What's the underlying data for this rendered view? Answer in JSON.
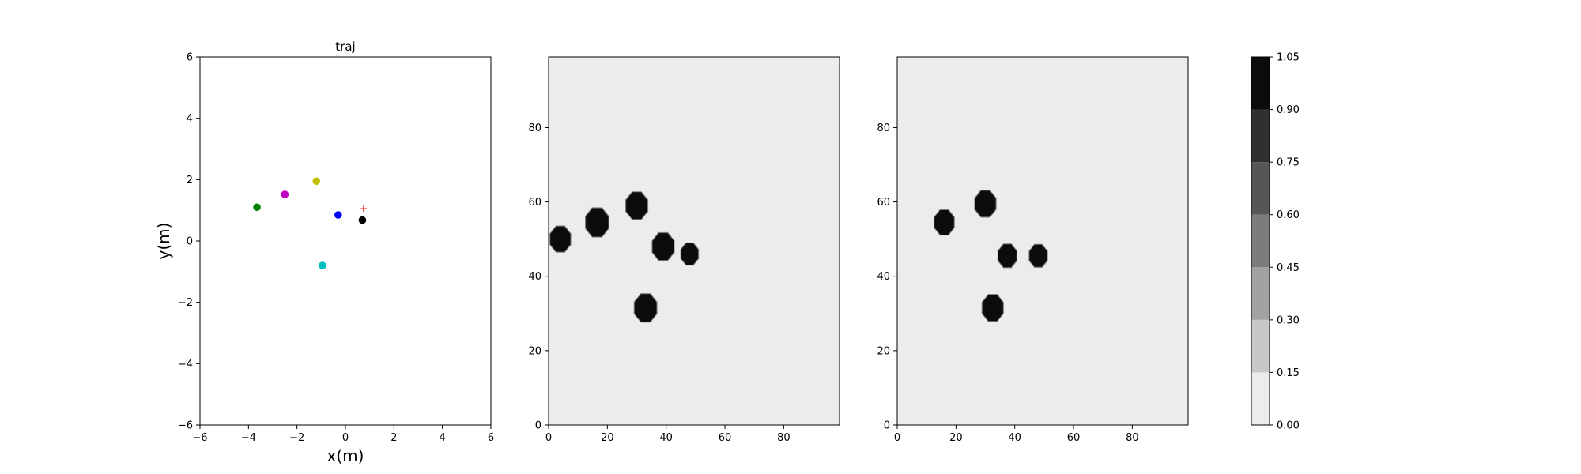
{
  "chart_data": [
    {
      "type": "scatter",
      "title": "traj",
      "xlabel": "x(m)",
      "ylabel": "y(m)",
      "xlim": [
        -6,
        6
      ],
      "ylim": [
        -6,
        6
      ],
      "xticks": [
        "−6",
        "−4",
        "−2",
        "0",
        "2",
        "4",
        "6"
      ],
      "yticks": [
        "−6",
        "−4",
        "−2",
        "0",
        "2",
        "4",
        "6"
      ],
      "grid": false,
      "points": [
        {
          "x": -3.65,
          "y": 1.1,
          "color": "#008000",
          "marker": "circle"
        },
        {
          "x": -2.5,
          "y": 1.52,
          "color": "#bf00bf",
          "marker": "circle"
        },
        {
          "x": -1.2,
          "y": 1.95,
          "color": "#bfbf00",
          "marker": "circle"
        },
        {
          "x": -0.3,
          "y": 0.85,
          "color": "#0000ff",
          "marker": "circle"
        },
        {
          "x": 0.7,
          "y": 0.68,
          "color": "#000000",
          "marker": "circle"
        },
        {
          "x": -0.95,
          "y": -0.8,
          "color": "#00bfbf",
          "marker": "circle"
        },
        {
          "x": 0.75,
          "y": 1.05,
          "color": "#ff0000",
          "marker": "plus"
        }
      ]
    },
    {
      "type": "heatmap",
      "xlim": [
        0,
        99
      ],
      "ylim": [
        0,
        99
      ],
      "xticks": [
        "0",
        "20",
        "40",
        "60",
        "80"
      ],
      "yticks": [
        "0",
        "20",
        "40",
        "60",
        "80"
      ],
      "background_value": 0.0,
      "blobs": [
        {
          "x": 4,
          "y": 50,
          "r": 3.2,
          "value": 1.0
        },
        {
          "x": 16.5,
          "y": 54.5,
          "r": 3.6,
          "value": 1.0
        },
        {
          "x": 30,
          "y": 59,
          "r": 3.4,
          "value": 1.0
        },
        {
          "x": 39,
          "y": 48,
          "r": 3.4,
          "value": 1.0
        },
        {
          "x": 48,
          "y": 46,
          "r": 2.7,
          "value": 1.0
        },
        {
          "x": 33,
          "y": 31.5,
          "r": 3.5,
          "value": 1.0
        }
      ]
    },
    {
      "type": "heatmap",
      "xlim": [
        0,
        99
      ],
      "ylim": [
        0,
        99
      ],
      "xticks": [
        "0",
        "20",
        "40",
        "60",
        "80"
      ],
      "yticks": [
        "0",
        "20",
        "40",
        "60",
        "80"
      ],
      "background_value": 0.0,
      "blobs": [
        {
          "x": 16,
          "y": 54.5,
          "r": 3.1,
          "value": 1.0
        },
        {
          "x": 30,
          "y": 59.5,
          "r": 3.3,
          "value": 1.0
        },
        {
          "x": 37.5,
          "y": 45.5,
          "r": 2.9,
          "value": 1.0
        },
        {
          "x": 48,
          "y": 45.5,
          "r": 2.8,
          "value": 1.0
        },
        {
          "x": 32.5,
          "y": 31.5,
          "r": 3.3,
          "value": 1.0
        }
      ]
    }
  ],
  "colorbar": {
    "ticks": [
      "0.00",
      "0.15",
      "0.30",
      "0.45",
      "0.60",
      "0.75",
      "0.90",
      "1.05"
    ],
    "levels": [
      0.0,
      0.15,
      0.3,
      0.45,
      0.6,
      0.75,
      0.9,
      1.05
    ],
    "colors": [
      "#ececec",
      "#c8c8c8",
      "#a2a2a2",
      "#7c7c7c",
      "#565656",
      "#303030",
      "#0c0c0c"
    ]
  }
}
